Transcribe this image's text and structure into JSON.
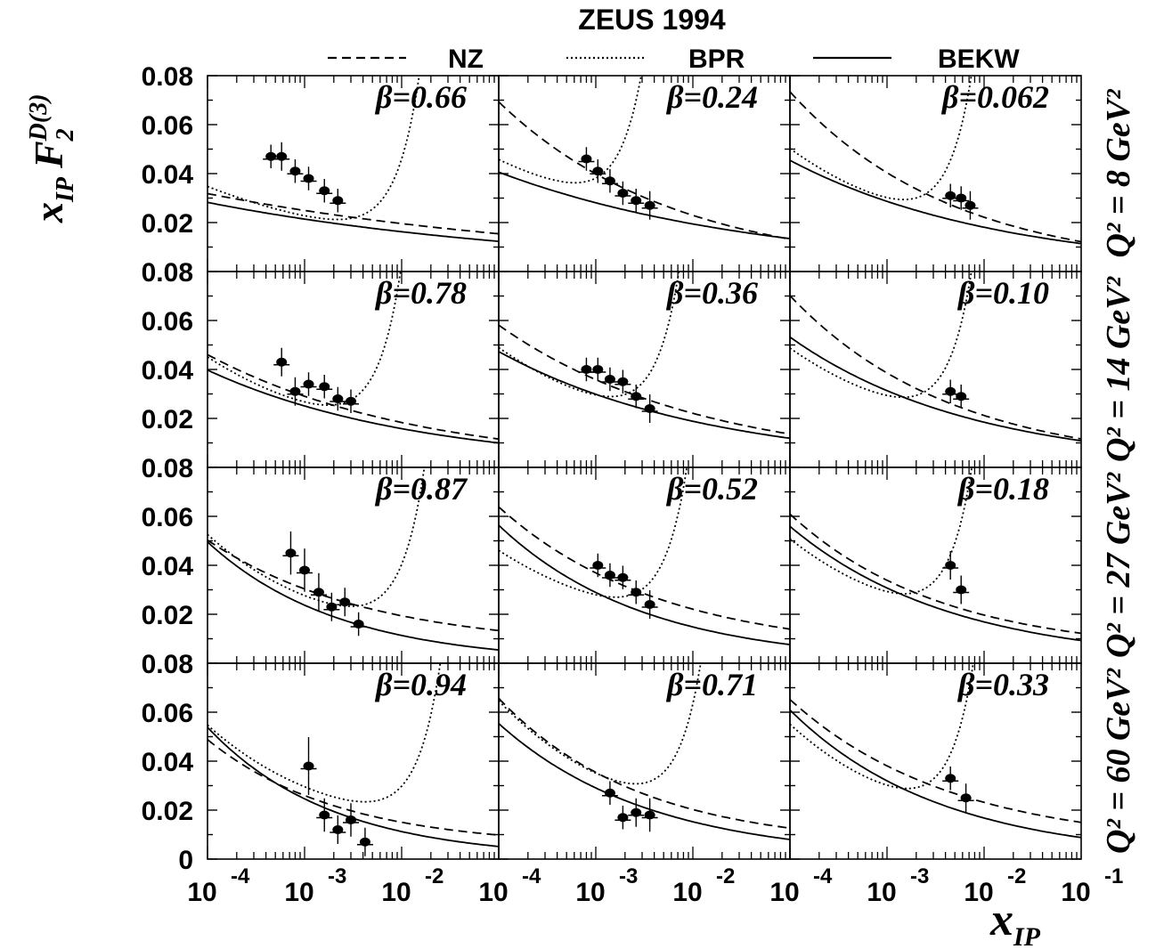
{
  "title": "ZEUS 1994",
  "legend": [
    {
      "key": "nz",
      "label": "NZ",
      "dash": "10,6"
    },
    {
      "key": "bpr",
      "label": "BPR",
      "dash": "2,3"
    },
    {
      "key": "bekw",
      "label": "BEKW",
      "dash": ""
    }
  ],
  "axes": {
    "ylabel": "x_IP F_2^D(3)",
    "xlabel": "x_IP",
    "y_ticks": [
      "0",
      "0.02",
      "0.04",
      "0.06",
      "0.08"
    ],
    "x_tick_exponents": [
      "-4",
      "-3",
      "-2",
      "-1"
    ],
    "x_tick_base": "10"
  },
  "chart_data": {
    "type": "scatter",
    "layout": "4 rows (Q^2) x 3 columns (beta), log x axis",
    "xscale": "log",
    "xlim": [
      0.0001,
      0.1
    ],
    "ylim": [
      0,
      0.08
    ],
    "rows": [
      {
        "q2_label": "Q² = 8 GeV²"
      },
      {
        "q2_label": "Q² = 14 GeV²"
      },
      {
        "q2_label": "Q² = 27 GeV²"
      },
      {
        "q2_label": "Q² = 60 GeV²"
      }
    ],
    "panels": [
      {
        "row": 0,
        "col": 0,
        "beta": "β=0.66",
        "points": [
          [
            0.00045,
            0.047,
            0.003
          ],
          [
            0.00058,
            0.047,
            0.004
          ],
          [
            0.0008,
            0.041,
            0.003
          ],
          [
            0.0011,
            0.038,
            0.003
          ],
          [
            0.0016,
            0.033,
            0.003
          ],
          [
            0.0022,
            0.029,
            0.003
          ]
        ],
        "curves": {
          "nz": {
            "C": 0.0112,
            "b": 0.11,
            "d": 0.001
          },
          "bpr": {
            "C": 0.00535,
            "b": 0.2,
            "d": 0.001,
            "k": 0.0005
          },
          "bekw": {
            "C": 0.00935,
            "b": 0.12,
            "d": 0.0
          }
        }
      },
      {
        "row": 0,
        "col": 1,
        "beta": "β=0.24",
        "points": [
          [
            0.0008,
            0.046,
            0.003
          ],
          [
            0.00105,
            0.041,
            0.003
          ],
          [
            0.0014,
            0.037,
            0.003
          ],
          [
            0.0019,
            0.032,
            0.003
          ],
          [
            0.0026,
            0.029,
            0.003
          ],
          [
            0.0036,
            0.027,
            0.004
          ]
        ],
        "curves": {
          "nz": {
            "C": 0.0076,
            "b": 0.24,
            "d": 0.0
          },
          "bpr": {
            "C": 0.0066,
            "b": 0.2,
            "d": 0.004,
            "k": 0.0079
          },
          "bekw": {
            "C": 0.0093,
            "b": 0.16,
            "d": 0.0
          }
        }
      },
      {
        "row": 0,
        "col": 2,
        "beta": "β=0.062",
        "points": [
          [
            0.0045,
            0.031,
            0.003
          ],
          [
            0.0058,
            0.03,
            0.003
          ],
          [
            0.0072,
            0.027,
            0.004
          ]
        ],
        "curves": {
          "nz": {
            "C": 0.0067,
            "b": 0.26,
            "d": 0.0
          },
          "bpr": {
            "C": 0.0044,
            "b": 0.26,
            "d": 0.002,
            "k": 0.0017
          },
          "bekw": {
            "C": 0.0072,
            "b": 0.2,
            "d": 0.0
          }
        }
      },
      {
        "row": 1,
        "col": 0,
        "beta": "β=0.78",
        "points": [
          [
            0.00058,
            0.043,
            0.004
          ],
          [
            0.0008,
            0.031,
            0.004
          ],
          [
            0.0011,
            0.034,
            0.003
          ],
          [
            0.0016,
            0.033,
            0.003
          ],
          [
            0.0022,
            0.028,
            0.003
          ],
          [
            0.003,
            0.027,
            0.003
          ]
        ],
        "curves": {
          "nz": {
            "C": 0.0073,
            "b": 0.2,
            "d": 0.0
          },
          "bpr": {
            "C": 0.00393,
            "b": 0.26,
            "d": 0.002,
            "k": 0.00108
          },
          "bekw": {
            "C": 0.0063,
            "b": 0.2,
            "d": 0.0
          }
        }
      },
      {
        "row": 1,
        "col": 1,
        "beta": "β=0.36",
        "points": [
          [
            0.0008,
            0.04,
            0.003
          ],
          [
            0.00105,
            0.04,
            0.003
          ],
          [
            0.0014,
            0.036,
            0.003
          ],
          [
            0.0019,
            0.035,
            0.003
          ],
          [
            0.0026,
            0.029,
            0.003
          ],
          [
            0.0036,
            0.024,
            0.004
          ]
        ],
        "curves": {
          "nz": {
            "C": 0.0084,
            "b": 0.21,
            "d": 0.0
          },
          "bpr": {
            "C": 0.00428,
            "b": 0.26,
            "d": 0.002,
            "k": 0.0018
          },
          "bekw": {
            "C": 0.0075,
            "b": 0.2,
            "d": 0.0
          }
        }
      },
      {
        "row": 1,
        "col": 2,
        "beta": "β=0.10",
        "points": [
          [
            0.0045,
            0.031,
            0.003
          ],
          [
            0.0058,
            0.029,
            0.003
          ]
        ],
        "curves": {
          "nz": {
            "C": 0.0064,
            "b": 0.26,
            "d": 0.0
          },
          "bpr": {
            "C": 0.00426,
            "b": 0.26,
            "d": 0.002,
            "k": 0.00171
          },
          "bekw": {
            "C": 0.0064,
            "b": 0.23,
            "d": 0.0
          }
        }
      },
      {
        "row": 2,
        "col": 0,
        "beta": "β=0.87",
        "points": [
          [
            0.00072,
            0.045,
            0.007
          ],
          [
            0.001,
            0.038,
            0.007
          ],
          [
            0.0014,
            0.029,
            0.006
          ],
          [
            0.0019,
            0.023,
            0.004
          ],
          [
            0.0026,
            0.025,
            0.004
          ],
          [
            0.0036,
            0.016,
            0.003
          ]
        ],
        "curves": {
          "nz": {
            "C": 0.00404,
            "b": 0.26,
            "d": 0.006
          },
          "bpr": {
            "C": 0.00255,
            "b": 0.32,
            "d": 0.004,
            "k": 0.0004
          },
          "bekw": {
            "C": 0.0026,
            "b": 0.32,
            "d": 0.0
          }
        }
      },
      {
        "row": 2,
        "col": 1,
        "beta": "β=0.52",
        "points": [
          [
            0.00105,
            0.04,
            0.003
          ],
          [
            0.0014,
            0.036,
            0.003
          ],
          [
            0.0019,
            0.035,
            0.003
          ],
          [
            0.0026,
            0.029,
            0.003
          ],
          [
            0.0036,
            0.024,
            0.004
          ]
        ],
        "curves": {
          "nz": {
            "C": 0.00546,
            "b": 0.26,
            "d": 0.004
          },
          "bpr": {
            "C": 0.00393,
            "b": 0.26,
            "d": 0.003,
            "k": 0.0013
          },
          "bekw": {
            "C": 0.0039,
            "b": 0.29,
            "d": 0.0
          }
        }
      },
      {
        "row": 2,
        "col": 2,
        "beta": "β=0.18",
        "points": [
          [
            0.0045,
            0.04,
            0.004
          ],
          [
            0.0058,
            0.03,
            0.004
          ]
        ],
        "curves": {
          "nz": {
            "C": 0.00432,
            "b": 0.28,
            "d": 0.004
          },
          "bpr": {
            "C": 0.0037,
            "b": 0.28,
            "d": 0.002,
            "k": 0.0017
          },
          "bekw": {
            "C": 0.0051,
            "b": 0.26,
            "d": 0.0
          }
        }
      },
      {
        "row": 3,
        "col": 0,
        "beta": "β=0.94",
        "points": [
          [
            0.0011,
            0.038,
            0.01
          ],
          [
            0.0016,
            0.018,
            0.005
          ],
          [
            0.0022,
            0.012,
            0.004
          ],
          [
            0.003,
            0.016,
            0.005
          ],
          [
            0.0042,
            0.007,
            0.004
          ]
        ],
        "curves": {
          "nz": {
            "C": 0.0023,
            "b": 0.32,
            "d": 0.005
          },
          "bpr": {
            "C": 0.00256,
            "b": 0.32,
            "d": 0.006,
            "k": 0.0002
          },
          "bekw": {
            "C": 0.00235,
            "b": 0.34,
            "d": 0.0
          }
        }
      },
      {
        "row": 3,
        "col": 1,
        "beta": "β=0.71",
        "points": [
          [
            0.0014,
            0.027,
            0.003
          ],
          [
            0.0019,
            0.017,
            0.003
          ],
          [
            0.0026,
            0.019,
            0.004
          ],
          [
            0.0036,
            0.018,
            0.005
          ]
        ],
        "curves": {
          "nz": {
            "C": 0.00383,
            "b": 0.3,
            "d": 0.005
          },
          "bpr": {
            "C": 0.00383,
            "b": 0.3,
            "d": 0.004,
            "k": 0.0007
          },
          "bekw": {
            "C": 0.0042,
            "b": 0.28,
            "d": 0.0
          }
        }
      },
      {
        "row": 3,
        "col": 2,
        "beta": "β=0.33",
        "points": [
          [
            0.0045,
            0.033,
            0.003
          ],
          [
            0.0065,
            0.025,
            0.004
          ]
        ],
        "curves": {
          "nz": {
            "C": 0.00549,
            "b": 0.26,
            "d": 0.005
          },
          "bpr": {
            "C": 0.00335,
            "b": 0.3,
            "d": 0.002,
            "k": 0.0016
          },
          "bekw": {
            "C": 0.00462,
            "b": 0.28,
            "d": 0.0
          }
        }
      }
    ]
  }
}
